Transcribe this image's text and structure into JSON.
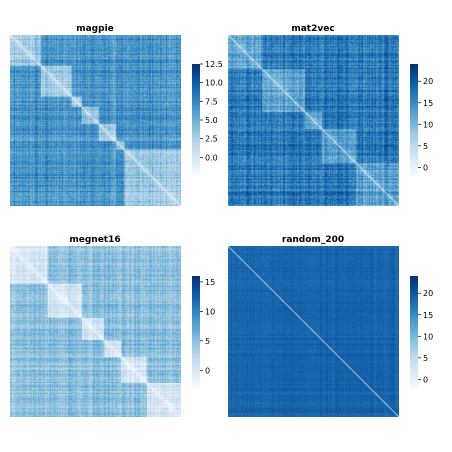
{
  "colormap": {
    "name": "Blues",
    "stops": [
      "#f7fbff",
      "#deebf7",
      "#c6dbef",
      "#9ecae1",
      "#6baed6",
      "#4292c6",
      "#2171b5",
      "#08519c",
      "#08306b"
    ]
  },
  "chart_data": [
    {
      "type": "heatmap",
      "title": "magpie",
      "matrix_size": 200,
      "diagonal_value": 0,
      "value_range": [
        -2.5,
        12.5
      ],
      "colorbar_ticks": [
        0.0,
        2.5,
        5.0,
        7.5,
        10.0,
        12.5
      ],
      "colorbar_tick_labels": [
        "0.0",
        "2.5",
        "5.0",
        "7.5",
        "10.0",
        "12.5"
      ],
      "blocks": [
        0.18,
        0.36,
        0.42,
        0.52,
        0.62,
        0.67,
        1.0
      ],
      "block_off_level": 0.62,
      "block_in_level": 0.38,
      "noise": 0.18,
      "seed": 11
    },
    {
      "type": "heatmap",
      "title": "mat2vec",
      "matrix_size": 200,
      "diagonal_value": 0,
      "value_range": [
        -2,
        24
      ],
      "colorbar_ticks": [
        0,
        5,
        10,
        15,
        20
      ],
      "colorbar_tick_labels": [
        "0",
        "5",
        "10",
        "15",
        "20"
      ],
      "blocks": [
        0.2,
        0.45,
        0.55,
        0.75,
        1.0
      ],
      "block_off_level": 0.72,
      "block_in_level": 0.55,
      "noise": 0.2,
      "seed": 23
    },
    {
      "type": "heatmap",
      "title": "megnet16",
      "matrix_size": 200,
      "diagonal_value": 0,
      "value_range": [
        -3,
        16
      ],
      "colorbar_ticks": [
        0,
        5,
        10,
        15
      ],
      "colorbar_tick_labels": [
        "0",
        "5",
        "10",
        "15"
      ],
      "blocks": [
        0.22,
        0.42,
        0.55,
        0.65,
        0.8,
        1.0
      ],
      "block_off_level": 0.42,
      "block_in_level": 0.18,
      "noise": 0.16,
      "seed": 37
    },
    {
      "type": "heatmap",
      "title": "random_200",
      "matrix_size": 200,
      "diagonal_value": 0,
      "value_range": [
        -2,
        24
      ],
      "colorbar_ticks": [
        0,
        5,
        10,
        15,
        20
      ],
      "colorbar_tick_labels": [
        "0",
        "5",
        "10",
        "15",
        "20"
      ],
      "blocks": [
        1.0
      ],
      "block_off_level": 0.8,
      "block_in_level": 0.8,
      "noise": 0.06,
      "seed": 53
    }
  ]
}
